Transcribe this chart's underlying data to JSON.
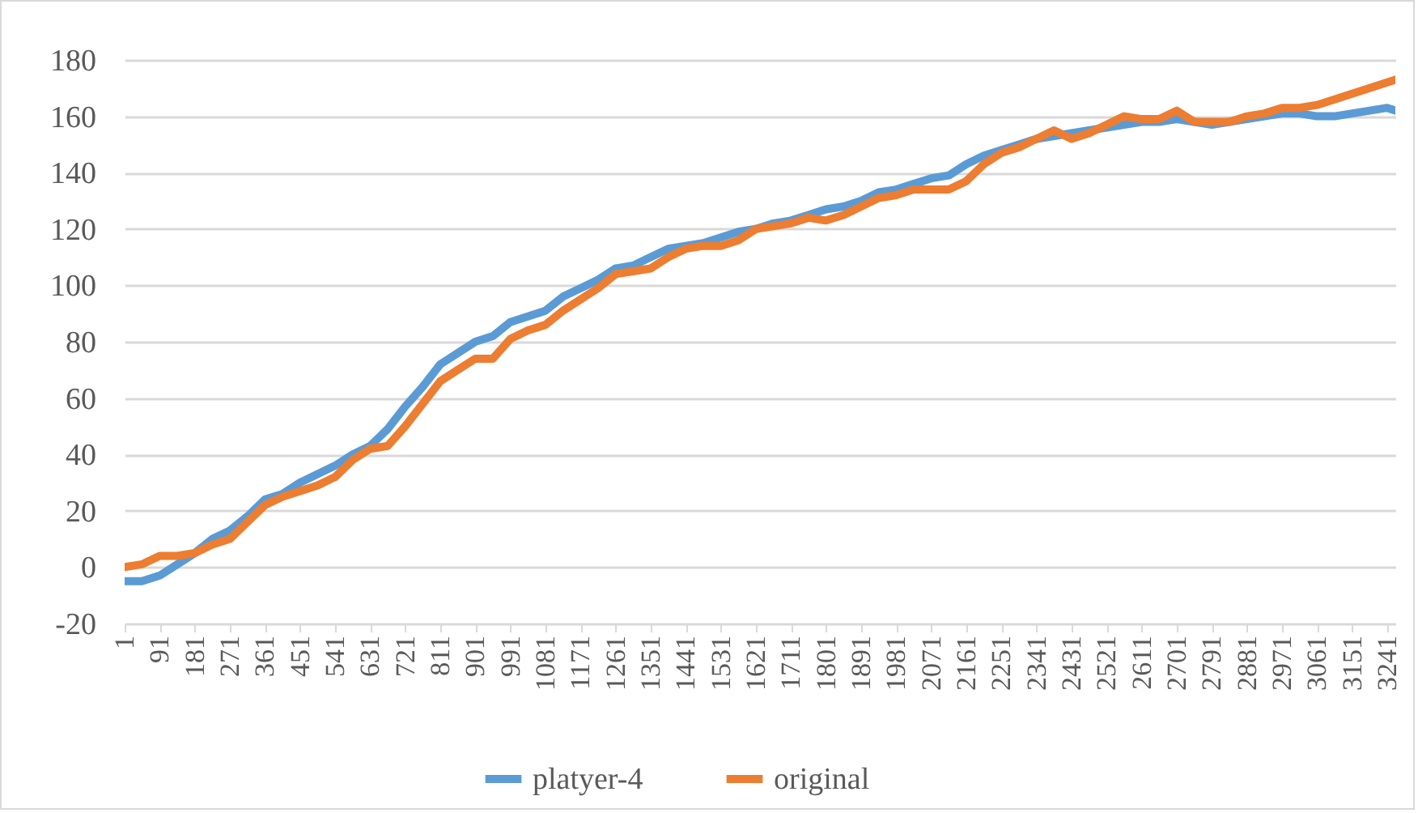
{
  "chart_data": {
    "type": "line",
    "x": [
      1,
      45,
      91,
      136,
      181,
      226,
      271,
      316,
      361,
      406,
      451,
      496,
      541,
      586,
      631,
      676,
      721,
      766,
      811,
      856,
      901,
      946,
      991,
      1036,
      1081,
      1126,
      1171,
      1216,
      1261,
      1306,
      1351,
      1396,
      1441,
      1486,
      1531,
      1576,
      1621,
      1666,
      1711,
      1756,
      1801,
      1846,
      1891,
      1936,
      1981,
      2026,
      2071,
      2116,
      2161,
      2206,
      2251,
      2296,
      2341,
      2386,
      2431,
      2476,
      2521,
      2566,
      2611,
      2656,
      2701,
      2746,
      2791,
      2836,
      2881,
      2926,
      2971,
      3016,
      3061,
      3106,
      3151,
      3196,
      3241,
      3262
    ],
    "series": [
      {
        "name": "platyer-4",
        "color": "#5b9bd5",
        "values": [
          -5,
          -5,
          -3,
          1,
          5,
          10,
          13,
          18,
          24,
          26,
          30,
          33,
          36,
          40,
          43,
          49,
          57,
          64,
          72,
          76,
          80,
          82,
          87,
          89,
          91,
          96,
          99,
          102,
          106,
          107,
          110,
          113,
          114,
          115,
          117,
          119,
          120,
          122,
          123,
          125,
          127,
          128,
          130,
          133,
          134,
          136,
          138,
          139,
          143,
          146,
          148,
          150,
          152,
          153,
          154,
          155,
          156,
          157,
          158,
          158,
          159,
          158,
          157,
          158,
          159,
          160,
          161,
          161,
          160,
          160,
          161,
          162,
          163,
          162
        ]
      },
      {
        "name": "original",
        "color": "#ed7d31",
        "values": [
          0,
          1,
          4,
          4,
          5,
          8,
          10,
          16,
          22,
          25,
          27,
          29,
          32,
          38,
          42,
          43,
          50,
          58,
          66,
          70,
          74,
          74,
          81,
          84,
          86,
          91,
          95,
          99,
          104,
          105,
          106,
          110,
          113,
          114,
          114,
          116,
          120,
          121,
          122,
          124,
          123,
          125,
          128,
          131,
          132,
          134,
          134,
          134,
          137,
          143,
          147,
          149,
          152,
          155,
          152,
          154,
          157,
          160,
          159,
          159,
          162,
          158,
          158,
          158,
          160,
          161,
          163,
          163,
          164,
          166,
          168,
          170,
          172,
          173
        ]
      }
    ],
    "xlim": [
      1,
      3262
    ],
    "xticks": [
      1,
      91,
      181,
      271,
      361,
      451,
      541,
      631,
      721,
      811,
      901,
      991,
      1081,
      1171,
      1261,
      1351,
      1441,
      1531,
      1621,
      1711,
      1801,
      1891,
      1981,
      2071,
      2161,
      2251,
      2341,
      2431,
      2521,
      2611,
      2701,
      2791,
      2881,
      2971,
      3061,
      3151,
      3241
    ],
    "ylim": [
      -20,
      180
    ],
    "yticks": [
      -20,
      0,
      20,
      40,
      60,
      80,
      100,
      120,
      140,
      160,
      180
    ],
    "grid": "y",
    "legend": "bottom",
    "line_style": "solid"
  }
}
